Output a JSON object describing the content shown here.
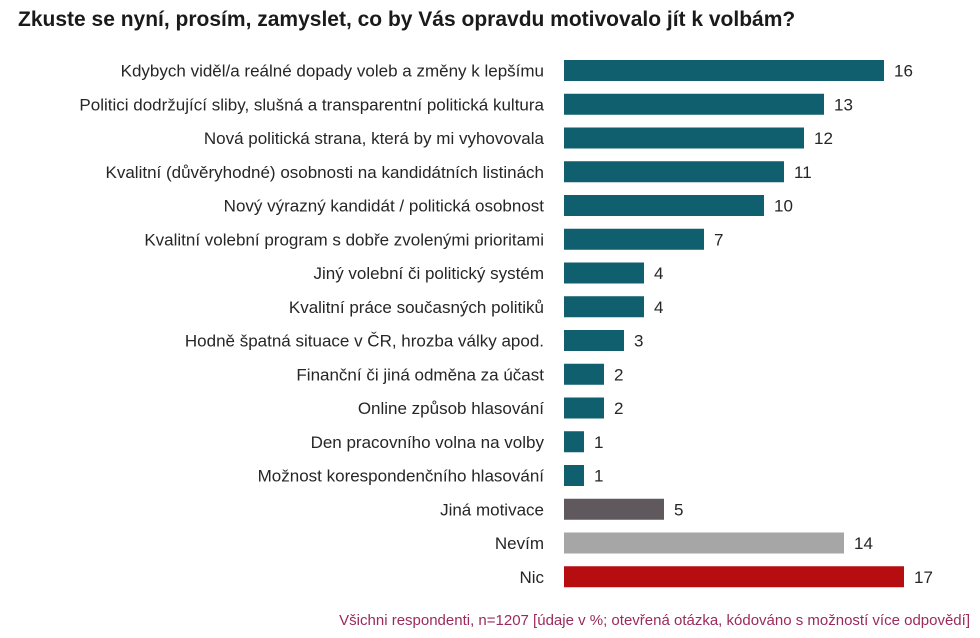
{
  "title": "Zkuste se nyní, prosím, zamyslet, co by Vás opravdu motivovalo jít k volbám?",
  "footnote": "Všichni respondenti, n=1207 [údaje v %; otevřená otázka, kódováno s možností více odpovědí]",
  "colors": {
    "primary": "#0f5f6e",
    "other": "#5f585c",
    "dontknow": "#a6a6a6",
    "nothing": "#b50d10"
  },
  "chart_data": {
    "type": "bar",
    "orientation": "horizontal",
    "title": "Zkuste se nyní, prosím, zamyslet, co by Vás opravdu motivovalo jít k volbám?",
    "unit": "%",
    "categories": [
      "Kdybych viděl/a reálné dopady voleb a změny k lepšímu",
      "Politici dodržující sliby, slušná a transparentní politická kultura",
      "Nová politická strana, která by mi vyhovovala",
      "Kvalitní (důvěryhodné) osobnosti na kandidátních listinách",
      "Nový výrazný kandidát / politická osobnost",
      "Kvalitní volební program s dobře zvolenými prioritami",
      "Jiný volební či politický systém",
      "Kvalitní práce současných politiků",
      "Hodně špatná situace v ČR, hrozba války apod.",
      "Finanční či jiná odměna za účast",
      "Online způsob hlasování",
      "Den pracovního volna na volby",
      "Možnost korespondenčního hlasování",
      "Jiná motivace",
      "Nevím",
      "Nic"
    ],
    "values": [
      16,
      13,
      12,
      11,
      10,
      7,
      4,
      4,
      3,
      2,
      2,
      1,
      1,
      5,
      14,
      17
    ],
    "bar_colors": [
      "primary",
      "primary",
      "primary",
      "primary",
      "primary",
      "primary",
      "primary",
      "primary",
      "primary",
      "primary",
      "primary",
      "primary",
      "primary",
      "other",
      "dontknow",
      "nothing"
    ],
    "grid": false,
    "legend": "none"
  }
}
